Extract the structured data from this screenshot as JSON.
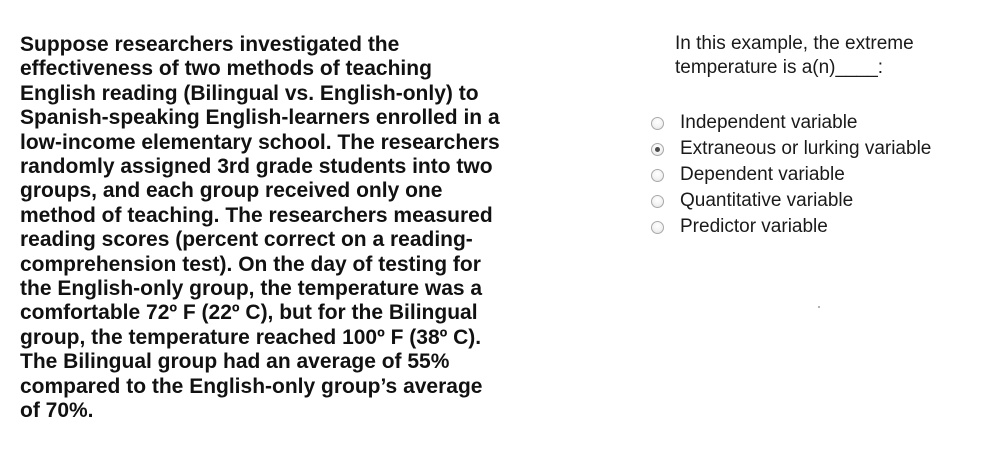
{
  "passage": {
    "lines": [
      "Suppose researchers investigated the",
      "effectiveness of two methods of teaching",
      "English reading (Bilingual vs. English-only) to",
      "Spanish-speaking English-learners enrolled in a",
      "low-income elementary school. The researchers",
      "randomly assigned 3rd grade students into two",
      "groups, and each group received only one",
      "method of teaching. The researchers measured",
      "reading scores (percent correct on a reading-",
      "comprehension test). On the day of testing for",
      "the English-only group, the temperature was a",
      "comfortable 72º F (22º C), but for the Bilingual",
      "group, the temperature reached 100º F (38º C).",
      "The Bilingual group had an average of 55%",
      "compared to the English-only group’s average",
      "of 70%."
    ]
  },
  "question": {
    "lines": [
      "In this example, the extreme",
      "temperature is a(n)____:"
    ]
  },
  "options": [
    {
      "label": "Independent variable",
      "selected": false
    },
    {
      "label": "Extraneous or lurking variable",
      "selected": true
    },
    {
      "label": "Dependent variable",
      "selected": false
    },
    {
      "label": "Quantitative variable",
      "selected": false
    },
    {
      "label": "Predictor variable",
      "selected": false
    }
  ]
}
